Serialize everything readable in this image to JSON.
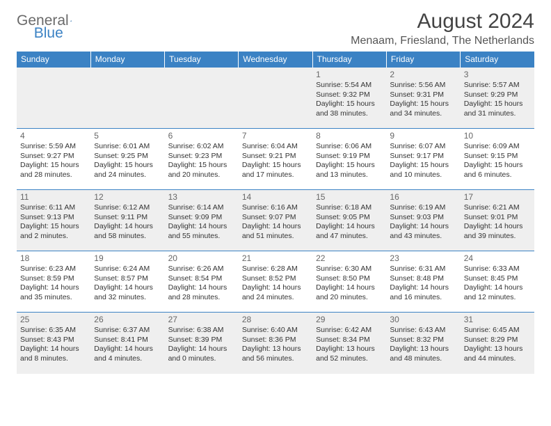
{
  "logo": {
    "text1": "General",
    "text2": "Blue"
  },
  "title": "August 2024",
  "location": "Menaam, Friesland, The Netherlands",
  "colors": {
    "header_bg": "#3b82c4",
    "header_fg": "#ffffff",
    "row_odd_bg": "#efefef",
    "row_even_bg": "#ffffff",
    "border": "#3b82c4",
    "logo_gray": "#6a6a6a",
    "logo_blue": "#3b82c4"
  },
  "daynames": [
    "Sunday",
    "Monday",
    "Tuesday",
    "Wednesday",
    "Thursday",
    "Friday",
    "Saturday"
  ],
  "weeks": [
    [
      null,
      null,
      null,
      null,
      {
        "n": "1",
        "sr": "5:54 AM",
        "ss": "9:32 PM",
        "dl": "15 hours and 38 minutes."
      },
      {
        "n": "2",
        "sr": "5:56 AM",
        "ss": "9:31 PM",
        "dl": "15 hours and 34 minutes."
      },
      {
        "n": "3",
        "sr": "5:57 AM",
        "ss": "9:29 PM",
        "dl": "15 hours and 31 minutes."
      }
    ],
    [
      {
        "n": "4",
        "sr": "5:59 AM",
        "ss": "9:27 PM",
        "dl": "15 hours and 28 minutes."
      },
      {
        "n": "5",
        "sr": "6:01 AM",
        "ss": "9:25 PM",
        "dl": "15 hours and 24 minutes."
      },
      {
        "n": "6",
        "sr": "6:02 AM",
        "ss": "9:23 PM",
        "dl": "15 hours and 20 minutes."
      },
      {
        "n": "7",
        "sr": "6:04 AM",
        "ss": "9:21 PM",
        "dl": "15 hours and 17 minutes."
      },
      {
        "n": "8",
        "sr": "6:06 AM",
        "ss": "9:19 PM",
        "dl": "15 hours and 13 minutes."
      },
      {
        "n": "9",
        "sr": "6:07 AM",
        "ss": "9:17 PM",
        "dl": "15 hours and 10 minutes."
      },
      {
        "n": "10",
        "sr": "6:09 AM",
        "ss": "9:15 PM",
        "dl": "15 hours and 6 minutes."
      }
    ],
    [
      {
        "n": "11",
        "sr": "6:11 AM",
        "ss": "9:13 PM",
        "dl": "15 hours and 2 minutes."
      },
      {
        "n": "12",
        "sr": "6:12 AM",
        "ss": "9:11 PM",
        "dl": "14 hours and 58 minutes."
      },
      {
        "n": "13",
        "sr": "6:14 AM",
        "ss": "9:09 PM",
        "dl": "14 hours and 55 minutes."
      },
      {
        "n": "14",
        "sr": "6:16 AM",
        "ss": "9:07 PM",
        "dl": "14 hours and 51 minutes."
      },
      {
        "n": "15",
        "sr": "6:18 AM",
        "ss": "9:05 PM",
        "dl": "14 hours and 47 minutes."
      },
      {
        "n": "16",
        "sr": "6:19 AM",
        "ss": "9:03 PM",
        "dl": "14 hours and 43 minutes."
      },
      {
        "n": "17",
        "sr": "6:21 AM",
        "ss": "9:01 PM",
        "dl": "14 hours and 39 minutes."
      }
    ],
    [
      {
        "n": "18",
        "sr": "6:23 AM",
        "ss": "8:59 PM",
        "dl": "14 hours and 35 minutes."
      },
      {
        "n": "19",
        "sr": "6:24 AM",
        "ss": "8:57 PM",
        "dl": "14 hours and 32 minutes."
      },
      {
        "n": "20",
        "sr": "6:26 AM",
        "ss": "8:54 PM",
        "dl": "14 hours and 28 minutes."
      },
      {
        "n": "21",
        "sr": "6:28 AM",
        "ss": "8:52 PM",
        "dl": "14 hours and 24 minutes."
      },
      {
        "n": "22",
        "sr": "6:30 AM",
        "ss": "8:50 PM",
        "dl": "14 hours and 20 minutes."
      },
      {
        "n": "23",
        "sr": "6:31 AM",
        "ss": "8:48 PM",
        "dl": "14 hours and 16 minutes."
      },
      {
        "n": "24",
        "sr": "6:33 AM",
        "ss": "8:45 PM",
        "dl": "14 hours and 12 minutes."
      }
    ],
    [
      {
        "n": "25",
        "sr": "6:35 AM",
        "ss": "8:43 PM",
        "dl": "14 hours and 8 minutes."
      },
      {
        "n": "26",
        "sr": "6:37 AM",
        "ss": "8:41 PM",
        "dl": "14 hours and 4 minutes."
      },
      {
        "n": "27",
        "sr": "6:38 AM",
        "ss": "8:39 PM",
        "dl": "14 hours and 0 minutes."
      },
      {
        "n": "28",
        "sr": "6:40 AM",
        "ss": "8:36 PM",
        "dl": "13 hours and 56 minutes."
      },
      {
        "n": "29",
        "sr": "6:42 AM",
        "ss": "8:34 PM",
        "dl": "13 hours and 52 minutes."
      },
      {
        "n": "30",
        "sr": "6:43 AM",
        "ss": "8:32 PM",
        "dl": "13 hours and 48 minutes."
      },
      {
        "n": "31",
        "sr": "6:45 AM",
        "ss": "8:29 PM",
        "dl": "13 hours and 44 minutes."
      }
    ]
  ],
  "labels": {
    "sunrise": "Sunrise:",
    "sunset": "Sunset:",
    "daylight": "Daylight:"
  }
}
